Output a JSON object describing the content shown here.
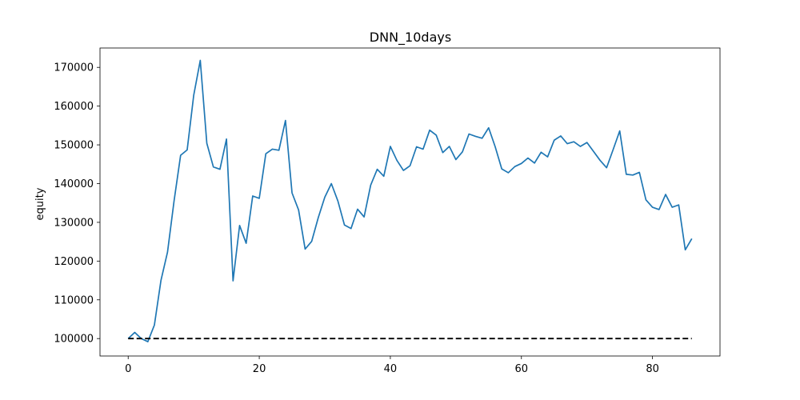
{
  "chart_data": {
    "type": "line",
    "title": "DNN_10days",
    "xlabel": "",
    "ylabel": "equity",
    "xlim": [
      -4.3,
      90.3
    ],
    "ylim": [
      95500,
      175000
    ],
    "grid": false,
    "xticks": [
      0,
      20,
      40,
      60,
      80
    ],
    "yticks": [
      100000,
      110000,
      120000,
      130000,
      140000,
      150000,
      160000,
      170000
    ],
    "series": [
      {
        "color": "#1f77b4",
        "style": "solid",
        "x": [
          0,
          1,
          2,
          3,
          4,
          5,
          6,
          7,
          8,
          9,
          10,
          11,
          12,
          13,
          14,
          15,
          16,
          17,
          18,
          19,
          20,
          21,
          22,
          23,
          24,
          25,
          26,
          27,
          28,
          29,
          30,
          31,
          32,
          33,
          34,
          35,
          36,
          37,
          38,
          39,
          40,
          41,
          42,
          43,
          44,
          45,
          46,
          47,
          48,
          49,
          50,
          51,
          52,
          53,
          54,
          55,
          56,
          57,
          58,
          59,
          60,
          61,
          62,
          63,
          64,
          65,
          66,
          67,
          68,
          69,
          70,
          71,
          72,
          73,
          74,
          75,
          76,
          77,
          78,
          79,
          80,
          81,
          82,
          83,
          84,
          85,
          86
        ],
        "values": [
          100000,
          101600,
          100000,
          99200,
          103500,
          115000,
          122300,
          135500,
          147300,
          148700,
          162800,
          171800,
          150400,
          144300,
          143700,
          151500,
          114900,
          129200,
          124600,
          136800,
          136200,
          147700,
          148900,
          148600,
          156300,
          137600,
          133200,
          123100,
          125100,
          131200,
          136500,
          140000,
          135500,
          129300,
          128400,
          133400,
          131400,
          139600,
          143700,
          141900,
          149600,
          146000,
          143400,
          144600,
          149500,
          148900,
          153800,
          152500,
          148000,
          149600,
          146200,
          148200,
          152800,
          152200,
          151700,
          154400,
          149500,
          143800,
          142800,
          144400,
          145200,
          146600,
          145300,
          148100,
          146900,
          151200,
          152300,
          150300,
          150800,
          149600,
          150600,
          148300,
          146000,
          144100,
          148800,
          153600,
          142400,
          142200,
          142900,
          135800,
          133900,
          133300,
          137200,
          133900,
          134500,
          122900,
          125800
        ]
      },
      {
        "color": "#000000",
        "style": "dashed",
        "x": [
          0,
          86
        ],
        "values": [
          100000,
          100000
        ]
      }
    ]
  }
}
